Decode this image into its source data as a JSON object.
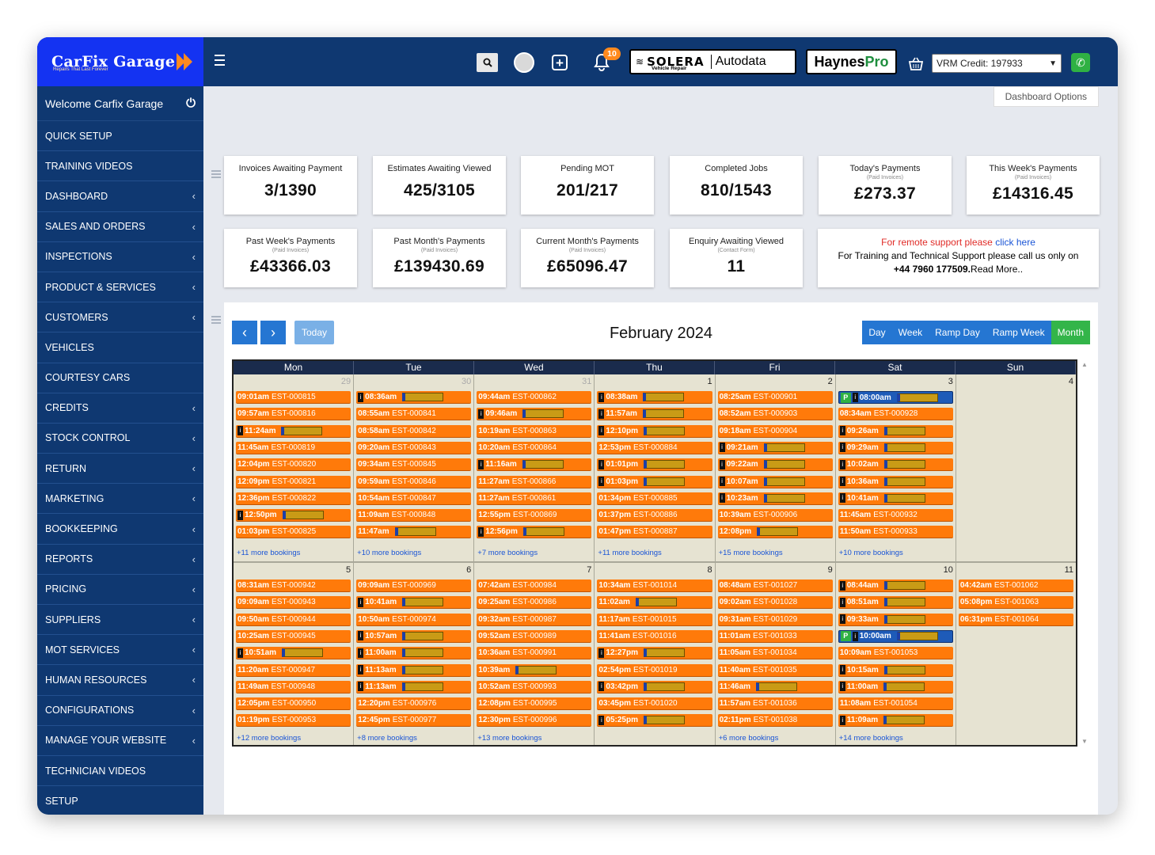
{
  "brand": {
    "name": "CarFix Garage",
    "tagline": "Repairs That Last Forever"
  },
  "sidebar": {
    "welcome": "Welcome Carfix Garage",
    "items": [
      {
        "label": "QUICK SETUP",
        "sub": false
      },
      {
        "label": "TRAINING VIDEOS",
        "sub": false
      },
      {
        "label": "DASHBOARD",
        "sub": true
      },
      {
        "label": "SALES AND ORDERS",
        "sub": true
      },
      {
        "label": "INSPECTIONS",
        "sub": true
      },
      {
        "label": "PRODUCT & SERVICES",
        "sub": true
      },
      {
        "label": "CUSTOMERS",
        "sub": true
      },
      {
        "label": "VEHICLES",
        "sub": false
      },
      {
        "label": "COURTESY CARS",
        "sub": false
      },
      {
        "label": "CREDITS",
        "sub": true
      },
      {
        "label": "STOCK CONTROL",
        "sub": true
      },
      {
        "label": "RETURN",
        "sub": true
      },
      {
        "label": "MARKETING",
        "sub": true
      },
      {
        "label": "BOOKKEEPING",
        "sub": true
      },
      {
        "label": "REPORTS",
        "sub": true
      },
      {
        "label": "PRICING",
        "sub": true
      },
      {
        "label": "SUPPLIERS",
        "sub": true
      },
      {
        "label": "MOT SERVICES",
        "sub": true
      },
      {
        "label": "HUMAN RESOURCES",
        "sub": true
      },
      {
        "label": "CONFIGURATIONS",
        "sub": true
      },
      {
        "label": "MANAGE YOUR WEBSITE",
        "sub": true
      },
      {
        "label": "TECHNICIAN VIDEOS",
        "sub": false
      },
      {
        "label": "SETUP",
        "sub": false
      }
    ]
  },
  "topbar": {
    "notifications": "10",
    "solera": {
      "name": "SOLERA",
      "sub": "Vehicle Repair",
      "partner": "Autodata"
    },
    "haynes": {
      "a": "Haynes",
      "b": "Pro"
    },
    "vrm": "VRM Credit: 197933"
  },
  "dashboard_options": "Dashboard Options",
  "stats": [
    {
      "title": "Invoices Awaiting Payment",
      "sub": "",
      "value": "3/1390"
    },
    {
      "title": "Estimates Awaiting Viewed",
      "sub": "",
      "value": "425/3105"
    },
    {
      "title": "Pending MOT",
      "sub": "",
      "value": "201/217"
    },
    {
      "title": "Completed Jobs",
      "sub": "",
      "value": "810/1543"
    },
    {
      "title": "Today's Payments",
      "sub": "(Paid Invoices)",
      "value": "£273.37"
    },
    {
      "title": "This Week's Payments",
      "sub": "(Paid Invoices)",
      "value": "£14316.45"
    },
    {
      "title": "Past Week's Payments",
      "sub": "(Paid Invoices)",
      "value": "£43366.03"
    },
    {
      "title": "Past Month's Payments",
      "sub": "(Paid Invoices)",
      "value": "£139430.69"
    },
    {
      "title": "Current Month's Payments",
      "sub": "(Paid Invoices)",
      "value": "£65096.47"
    },
    {
      "title": "Enquiry Awaiting Viewed",
      "sub": "(Contact Form)",
      "value": "11"
    }
  ],
  "support": {
    "line1": "For remote support please",
    "link": "click here",
    "line2": "For Training and Technical Support please call us only on",
    "phone": "+44 7960 177509.",
    "more": "Read More.."
  },
  "calendar": {
    "title": "February 2024",
    "today": "Today",
    "views": [
      "Day",
      "Week",
      "Ramp Day",
      "Ramp Week",
      "Month"
    ],
    "active_view": "Month",
    "weekdays": [
      "Mon",
      "Tue",
      "Wed",
      "Thu",
      "Fri",
      "Sat",
      "Sun"
    ],
    "weeks": [
      [
        {
          "date": "29",
          "other": true,
          "more": "+11 more bookings",
          "events": [
            {
              "time": "09:01am",
              "ref": "EST-000815"
            },
            {
              "time": "09:57am",
              "ref": "EST-000816"
            },
            {
              "time": "11:24am",
              "ref": "",
              "info": true
            },
            {
              "time": "11:45am",
              "ref": "EST-000819"
            },
            {
              "time": "12:04pm",
              "ref": "EST-000820"
            },
            {
              "time": "12:09pm",
              "ref": "EST-000821"
            },
            {
              "time": "12:36pm",
              "ref": "EST-000822"
            },
            {
              "time": "12:50pm",
              "ref": "",
              "info": true
            },
            {
              "time": "01:03pm",
              "ref": "EST-000825"
            }
          ]
        },
        {
          "date": "30",
          "other": true,
          "more": "+10 more bookings",
          "events": [
            {
              "time": "08:36am",
              "ref": "",
              "info": true
            },
            {
              "time": "08:55am",
              "ref": "EST-000841"
            },
            {
              "time": "08:58am",
              "ref": "EST-000842"
            },
            {
              "time": "09:20am",
              "ref": "EST-000843"
            },
            {
              "time": "09:34am",
              "ref": "EST-000845"
            },
            {
              "time": "09:59am",
              "ref": "EST-000846"
            },
            {
              "time": "10:54am",
              "ref": "EST-000847"
            },
            {
              "time": "11:09am",
              "ref": "EST-000848"
            },
            {
              "time": "11:47am",
              "ref": ""
            }
          ]
        },
        {
          "date": "31",
          "other": true,
          "more": "+7 more bookings",
          "events": [
            {
              "time": "09:44am",
              "ref": "EST-000862"
            },
            {
              "time": "09:46am",
              "ref": "",
              "info": true
            },
            {
              "time": "10:19am",
              "ref": "EST-000863"
            },
            {
              "time": "10:20am",
              "ref": "EST-000864"
            },
            {
              "time": "11:16am",
              "ref": "",
              "info": true
            },
            {
              "time": "11:27am",
              "ref": "EST-000866"
            },
            {
              "time": "11:27am",
              "ref": "EST-000861"
            },
            {
              "time": "12:55pm",
              "ref": "EST-000869"
            },
            {
              "time": "12:56pm",
              "ref": "",
              "info": true
            }
          ]
        },
        {
          "date": "1",
          "other": false,
          "more": "+11 more bookings",
          "events": [
            {
              "time": "08:38am",
              "ref": "",
              "info": true
            },
            {
              "time": "11:57am",
              "ref": "",
              "info": true
            },
            {
              "time": "12:10pm",
              "ref": "",
              "info": true
            },
            {
              "time": "12:53pm",
              "ref": "EST-000884"
            },
            {
              "time": "01:01pm",
              "ref": "",
              "info": true
            },
            {
              "time": "01:03pm",
              "ref": "",
              "info": true
            },
            {
              "time": "01:34pm",
              "ref": "EST-000885"
            },
            {
              "time": "01:37pm",
              "ref": "EST-000886"
            },
            {
              "time": "01:47pm",
              "ref": "EST-000887"
            }
          ]
        },
        {
          "date": "2",
          "other": false,
          "more": "+15 more bookings",
          "events": [
            {
              "time": "08:25am",
              "ref": "EST-000901"
            },
            {
              "time": "08:52am",
              "ref": "EST-000903"
            },
            {
              "time": "09:18am",
              "ref": "EST-000904"
            },
            {
              "time": "09:21am",
              "ref": "",
              "info": true
            },
            {
              "time": "09:22am",
              "ref": "",
              "info": true
            },
            {
              "time": "10:07am",
              "ref": "",
              "info": true
            },
            {
              "time": "10:23am",
              "ref": "",
              "info": true
            },
            {
              "time": "10:39am",
              "ref": "EST-000906"
            },
            {
              "time": "12:08pm",
              "ref": ""
            }
          ]
        },
        {
          "date": "3",
          "other": false,
          "more": "+10 more bookings",
          "events": [
            {
              "time": "08:00am",
              "ref": "",
              "mot": true
            },
            {
              "time": "08:34am",
              "ref": "EST-000928"
            },
            {
              "time": "09:26am",
              "ref": "",
              "info": true
            },
            {
              "time": "09:29am",
              "ref": "",
              "info": true
            },
            {
              "time": "10:02am",
              "ref": "",
              "info": true
            },
            {
              "time": "10:36am",
              "ref": "",
              "info": true
            },
            {
              "time": "10:41am",
              "ref": "",
              "info": true
            },
            {
              "time": "11:45am",
              "ref": "EST-000932"
            },
            {
              "time": "11:50am",
              "ref": "EST-000933"
            }
          ]
        },
        {
          "date": "4",
          "other": false,
          "more": "",
          "events": []
        }
      ],
      [
        {
          "date": "5",
          "other": false,
          "more": "+12 more bookings",
          "events": [
            {
              "time": "08:31am",
              "ref": "EST-000942"
            },
            {
              "time": "09:09am",
              "ref": "EST-000943"
            },
            {
              "time": "09:50am",
              "ref": "EST-000944"
            },
            {
              "time": "10:25am",
              "ref": "EST-000945"
            },
            {
              "time": "10:51am",
              "ref": "",
              "info": true
            },
            {
              "time": "11:20am",
              "ref": "EST-000947"
            },
            {
              "time": "11:49am",
              "ref": "EST-000948"
            },
            {
              "time": "12:05pm",
              "ref": "EST-000950"
            },
            {
              "time": "01:19pm",
              "ref": "EST-000953"
            }
          ]
        },
        {
          "date": "6",
          "other": false,
          "more": "+8 more bookings",
          "events": [
            {
              "time": "09:09am",
              "ref": "EST-000969"
            },
            {
              "time": "10:41am",
              "ref": "",
              "info": true
            },
            {
              "time": "10:50am",
              "ref": "EST-000974"
            },
            {
              "time": "10:57am",
              "ref": "",
              "info": true
            },
            {
              "time": "11:00am",
              "ref": "",
              "info": true
            },
            {
              "time": "11:13am",
              "ref": "",
              "info": true
            },
            {
              "time": "11:13am",
              "ref": "",
              "info": true
            },
            {
              "time": "12:20pm",
              "ref": "EST-000976"
            },
            {
              "time": "12:45pm",
              "ref": "EST-000977"
            }
          ]
        },
        {
          "date": "7",
          "other": false,
          "more": "+13 more bookings",
          "events": [
            {
              "time": "07:42am",
              "ref": "EST-000984"
            },
            {
              "time": "09:25am",
              "ref": "EST-000986"
            },
            {
              "time": "09:32am",
              "ref": "EST-000987"
            },
            {
              "time": "09:52am",
              "ref": "EST-000989"
            },
            {
              "time": "10:36am",
              "ref": "EST-000991"
            },
            {
              "time": "10:39am",
              "ref": ""
            },
            {
              "time": "10:52am",
              "ref": "EST-000993"
            },
            {
              "time": "12:08pm",
              "ref": "EST-000995"
            },
            {
              "time": "12:30pm",
              "ref": "EST-000996"
            }
          ]
        },
        {
          "date": "8",
          "other": false,
          "more": "",
          "events": [
            {
              "time": "10:34am",
              "ref": "EST-001014"
            },
            {
              "time": "11:02am",
              "ref": ""
            },
            {
              "time": "11:17am",
              "ref": "EST-001015"
            },
            {
              "time": "11:41am",
              "ref": "EST-001016"
            },
            {
              "time": "12:27pm",
              "ref": "",
              "info": true
            },
            {
              "time": "02:54pm",
              "ref": "EST-001019"
            },
            {
              "time": "03:42pm",
              "ref": "",
              "info": true
            },
            {
              "time": "03:45pm",
              "ref": "EST-001020"
            },
            {
              "time": "05:25pm",
              "ref": "",
              "info": true
            }
          ]
        },
        {
          "date": "9",
          "other": false,
          "more": "+6 more bookings",
          "events": [
            {
              "time": "08:48am",
              "ref": "EST-001027"
            },
            {
              "time": "09:02am",
              "ref": "EST-001028"
            },
            {
              "time": "09:31am",
              "ref": "EST-001029"
            },
            {
              "time": "11:01am",
              "ref": "EST-001033"
            },
            {
              "time": "11:05am",
              "ref": "EST-001034"
            },
            {
              "time": "11:40am",
              "ref": "EST-001035"
            },
            {
              "time": "11:46am",
              "ref": ""
            },
            {
              "time": "11:57am",
              "ref": "EST-001036"
            },
            {
              "time": "02:11pm",
              "ref": "EST-001038"
            }
          ]
        },
        {
          "date": "10",
          "other": false,
          "more": "+14 more bookings",
          "events": [
            {
              "time": "08:44am",
              "ref": "",
              "info": true
            },
            {
              "time": "08:51am",
              "ref": "",
              "info": true
            },
            {
              "time": "09:33am",
              "ref": "",
              "info": true
            },
            {
              "time": "10:00am",
              "ref": "",
              "mot": true
            },
            {
              "time": "10:09am",
              "ref": "EST-001053"
            },
            {
              "time": "10:15am",
              "ref": "",
              "info": true
            },
            {
              "time": "11:00am",
              "ref": "",
              "info": true
            },
            {
              "time": "11:08am",
              "ref": "EST-001054"
            },
            {
              "time": "11:09am",
              "ref": "",
              "info": true
            }
          ]
        },
        {
          "date": "11",
          "other": false,
          "more": "",
          "events": [
            {
              "time": "04:42am",
              "ref": "EST-001062"
            },
            {
              "time": "05:08pm",
              "ref": "EST-001063"
            },
            {
              "time": "06:31pm",
              "ref": "EST-001064"
            }
          ]
        }
      ]
    ]
  }
}
